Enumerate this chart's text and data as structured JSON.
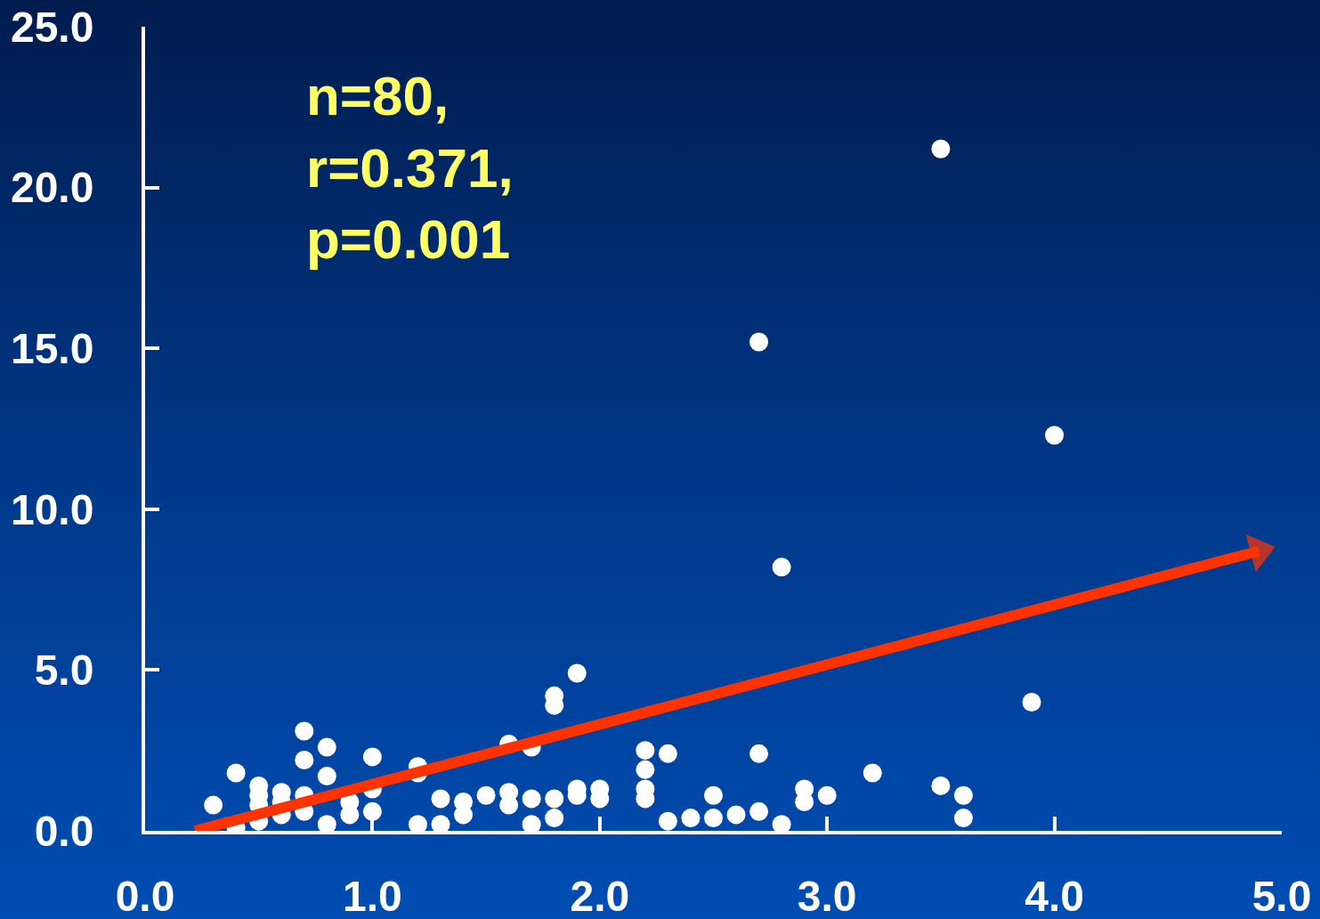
{
  "chart_data": {
    "type": "scatter",
    "annotations": [
      "n=80,\nr=0.371,\np=0.001"
    ],
    "xlim": [
      0,
      5
    ],
    "ylim": [
      0,
      25
    ],
    "xticks": [
      {
        "value": 0,
        "label": "0.0"
      },
      {
        "value": 1,
        "label": "1.0"
      },
      {
        "value": 2,
        "label": "2.0"
      },
      {
        "value": 3,
        "label": "3.0"
      },
      {
        "value": 4,
        "label": "4.0"
      },
      {
        "value": 5,
        "label": "5.0"
      }
    ],
    "yticks": [
      {
        "value": 0,
        "label": "0.0"
      },
      {
        "value": 5,
        "label": "5.0"
      },
      {
        "value": 10,
        "label": "10.0"
      },
      {
        "value": 15,
        "label": "15.0"
      },
      {
        "value": 20,
        "label": "20.0"
      },
      {
        "value": 25,
        "label": "25.0"
      }
    ],
    "grid": false,
    "series": [
      {
        "color": "#ffffff",
        "marker": "circle",
        "x": [
          0.3,
          0.4,
          0.4,
          0.5,
          0.5,
          0.5,
          0.5,
          0.6,
          0.6,
          0.6,
          0.7,
          0.7,
          0.7,
          0.7,
          0.8,
          0.8,
          0.8,
          0.9,
          0.9,
          1.0,
          1.0,
          1.0,
          1.2,
          1.2,
          1.2,
          1.3,
          1.3,
          1.4,
          1.4,
          1.5,
          1.6,
          1.6,
          1.6,
          1.7,
          1.7,
          1.7,
          1.8,
          1.8,
          1.8,
          1.8,
          1.9,
          1.9,
          1.9,
          2.0,
          2.0,
          2.2,
          2.2,
          2.2,
          2.2,
          2.3,
          2.3,
          2.4,
          2.5,
          2.5,
          2.6,
          2.7,
          2.7,
          2.7,
          2.8,
          2.8,
          2.9,
          2.9,
          3.0,
          3.2,
          3.5,
          3.5,
          3.6,
          3.6,
          3.9,
          4.0
        ],
        "values": [
          0.8,
          1.8,
          0.1,
          1.4,
          1.1,
          0.8,
          0.3,
          1.2,
          0.9,
          0.5,
          3.1,
          2.2,
          1.1,
          0.6,
          2.6,
          1.7,
          0.2,
          0.9,
          0.5,
          2.3,
          1.3,
          0.6,
          2.0,
          1.8,
          0.2,
          1.0,
          0.2,
          0.9,
          0.5,
          1.1,
          2.7,
          1.2,
          0.8,
          2.6,
          1.0,
          0.2,
          4.2,
          3.9,
          1.0,
          0.4,
          4.9,
          1.3,
          1.1,
          1.3,
          1.0,
          2.5,
          1.9,
          1.3,
          1.0,
          2.4,
          0.3,
          0.4,
          1.1,
          0.4,
          0.5,
          15.2,
          2.4,
          0.6,
          8.2,
          0.2,
          1.3,
          0.9,
          1.1,
          1.8,
          21.2,
          1.4,
          1.1,
          0.4,
          4.0,
          12.3
        ]
      },
      {
        "type": "line",
        "color": "#ff3300",
        "marker": "triangle",
        "line_style": "solid",
        "x": [
          0.22,
          4.9
        ],
        "values": [
          0,
          8.7
        ]
      }
    ]
  }
}
